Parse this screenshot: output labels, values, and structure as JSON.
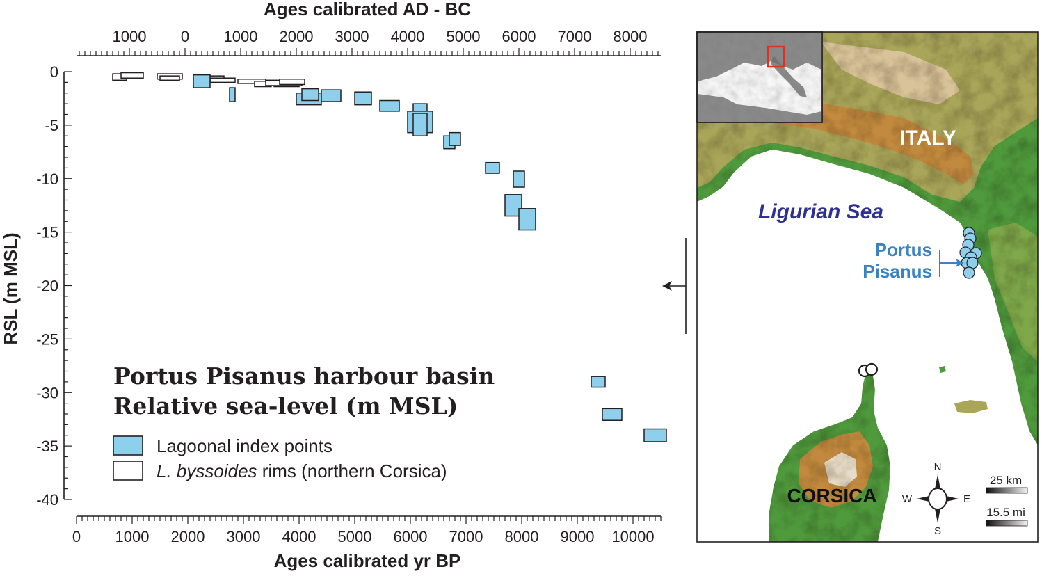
{
  "chart_data": {
    "type": "scatter",
    "title": "",
    "xlabel": "Ages calibrated yr BP",
    "x2label": "Ages calibrated AD - BC",
    "ylabel": "RSL (m MSL)",
    "xlim": [
      0,
      10500
    ],
    "ylim": [
      -40,
      0
    ],
    "x_ticks": [
      0,
      1000,
      2000,
      3000,
      4000,
      5000,
      6000,
      7000,
      8000,
      9000,
      10000
    ],
    "y_ticks": [
      0,
      -5,
      -10,
      -15,
      -20,
      -25,
      -30,
      -35,
      -40
    ],
    "top_ticks": [
      {
        "label": "1000",
        "bp": 950
      },
      {
        "label": "0",
        "bp": 1950
      },
      {
        "label": "1000",
        "bp": 2950
      },
      {
        "label": "2000",
        "bp": 3950
      },
      {
        "label": "3000",
        "bp": 4950
      },
      {
        "label": "4000",
        "bp": 5950
      },
      {
        "label": "5000",
        "bp": 6950
      },
      {
        "label": "6000",
        "bp": 7950
      },
      {
        "label": "7000",
        "bp": 8950
      },
      {
        "label": "8000",
        "bp": 9950
      }
    ],
    "legend_title_lines": [
      "Portus Pisanus harbour basin",
      "Relative sea-level (m MSL)"
    ],
    "series": [
      {
        "name": "Lagoonal index points",
        "color": "#8ed0ec",
        "style": "filled-box",
        "points": [
          {
            "x0": 2100,
            "x1": 2400,
            "y0": -0.3,
            "y1": -1.5
          },
          {
            "x0": 2750,
            "x1": 2850,
            "y0": -1.5,
            "y1": -2.8
          },
          {
            "x0": 3950,
            "x1": 4400,
            "y0": -2.0,
            "y1": -3.1
          },
          {
            "x0": 4050,
            "x1": 4350,
            "y0": -1.6,
            "y1": -2.7
          },
          {
            "x0": 4400,
            "x1": 4750,
            "y0": -1.7,
            "y1": -2.8
          },
          {
            "x0": 5000,
            "x1": 5300,
            "y0": -1.9,
            "y1": -3.1
          },
          {
            "x0": 5450,
            "x1": 5800,
            "y0": -2.7,
            "y1": -3.7
          },
          {
            "x0": 6050,
            "x1": 6300,
            "y0": -3.0,
            "y1": -4.0
          },
          {
            "x0": 5950,
            "x1": 6400,
            "y0": -3.7,
            "y1": -5.7
          },
          {
            "x0": 6050,
            "x1": 6300,
            "y0": -3.9,
            "y1": -6.0
          },
          {
            "x0": 6600,
            "x1": 6800,
            "y0": -6.0,
            "y1": -7.2
          },
          {
            "x0": 6700,
            "x1": 6900,
            "y0": -5.7,
            "y1": -6.9
          },
          {
            "x0": 7350,
            "x1": 7600,
            "y0": -8.5,
            "y1": -9.5
          },
          {
            "x0": 7850,
            "x1": 8050,
            "y0": -9.3,
            "y1": -10.8
          },
          {
            "x0": 7700,
            "x1": 8000,
            "y0": -11.5,
            "y1": -13.5
          },
          {
            "x0": 7950,
            "x1": 8250,
            "y0": -12.8,
            "y1": -14.8
          },
          {
            "x0": 9250,
            "x1": 9500,
            "y0": -28.5,
            "y1": -29.5
          },
          {
            "x0": 9450,
            "x1": 9800,
            "y0": -31.5,
            "y1": -32.6
          },
          {
            "x0": 10200,
            "x1": 10600,
            "y0": -33.4,
            "y1": -34.6
          }
        ]
      },
      {
        "name": "L. byssoides rims (northern Corsica)",
        "name_italic": "L. byssoides",
        "name_rest": " rims (northern Corsica)",
        "color": "#ffffff",
        "style": "open-box",
        "points": [
          {
            "x0": 650,
            "x1": 900,
            "y0": -0.2,
            "y1": -0.8
          },
          {
            "x0": 800,
            "x1": 1200,
            "y0": -0.1,
            "y1": -0.6
          },
          {
            "x0": 1450,
            "x1": 1900,
            "y0": -0.2,
            "y1": -0.7
          },
          {
            "x0": 1500,
            "x1": 1850,
            "y0": -0.4,
            "y1": -0.8
          },
          {
            "x0": 2200,
            "x1": 2650,
            "y0": -0.4,
            "y1": -0.8
          },
          {
            "x0": 2400,
            "x1": 2850,
            "y0": -0.6,
            "y1": -1.0
          },
          {
            "x0": 2900,
            "x1": 3400,
            "y0": -0.7,
            "y1": -1.1
          },
          {
            "x0": 3200,
            "x1": 3500,
            "y0": -0.9,
            "y1": -1.4
          },
          {
            "x0": 3550,
            "x1": 4000,
            "y0": -1.0,
            "y1": -1.4
          },
          {
            "x0": 3400,
            "x1": 4050,
            "y0": -0.8,
            "y1": -1.3
          },
          {
            "x0": 3650,
            "x1": 4100,
            "y0": -0.7,
            "y1": -1.2
          }
        ]
      }
    ],
    "legend": [
      {
        "label": "Lagoonal index points",
        "color": "#8ed0ec"
      },
      {
        "label": "L. byssoides rims (northern Corsica)",
        "color": "#ffffff"
      }
    ],
    "grid": false,
    "legend_placement": "bottom-left"
  },
  "map": {
    "labels": {
      "italy": "ITALY",
      "sea": "Ligurian Sea",
      "corsica": "CORSICA",
      "site_line1": "Portus",
      "site_line2": "Pisanus"
    },
    "compass": {
      "n": "N",
      "s": "S",
      "e": "E",
      "w": "W"
    },
    "scale_km": "25 km",
    "scale_mi": "15.5 mi",
    "colors": {
      "sea": "#ffffff",
      "lowland": "#4f9a3c",
      "hills": "#a9a65a",
      "mountains": "#c28a3e",
      "peaks": "#e6dcc8",
      "site_marker": "#8ed0ec",
      "site_label": "#3b82c4",
      "sea_label": "#2e3192",
      "inset_box": "#e03020"
    }
  }
}
